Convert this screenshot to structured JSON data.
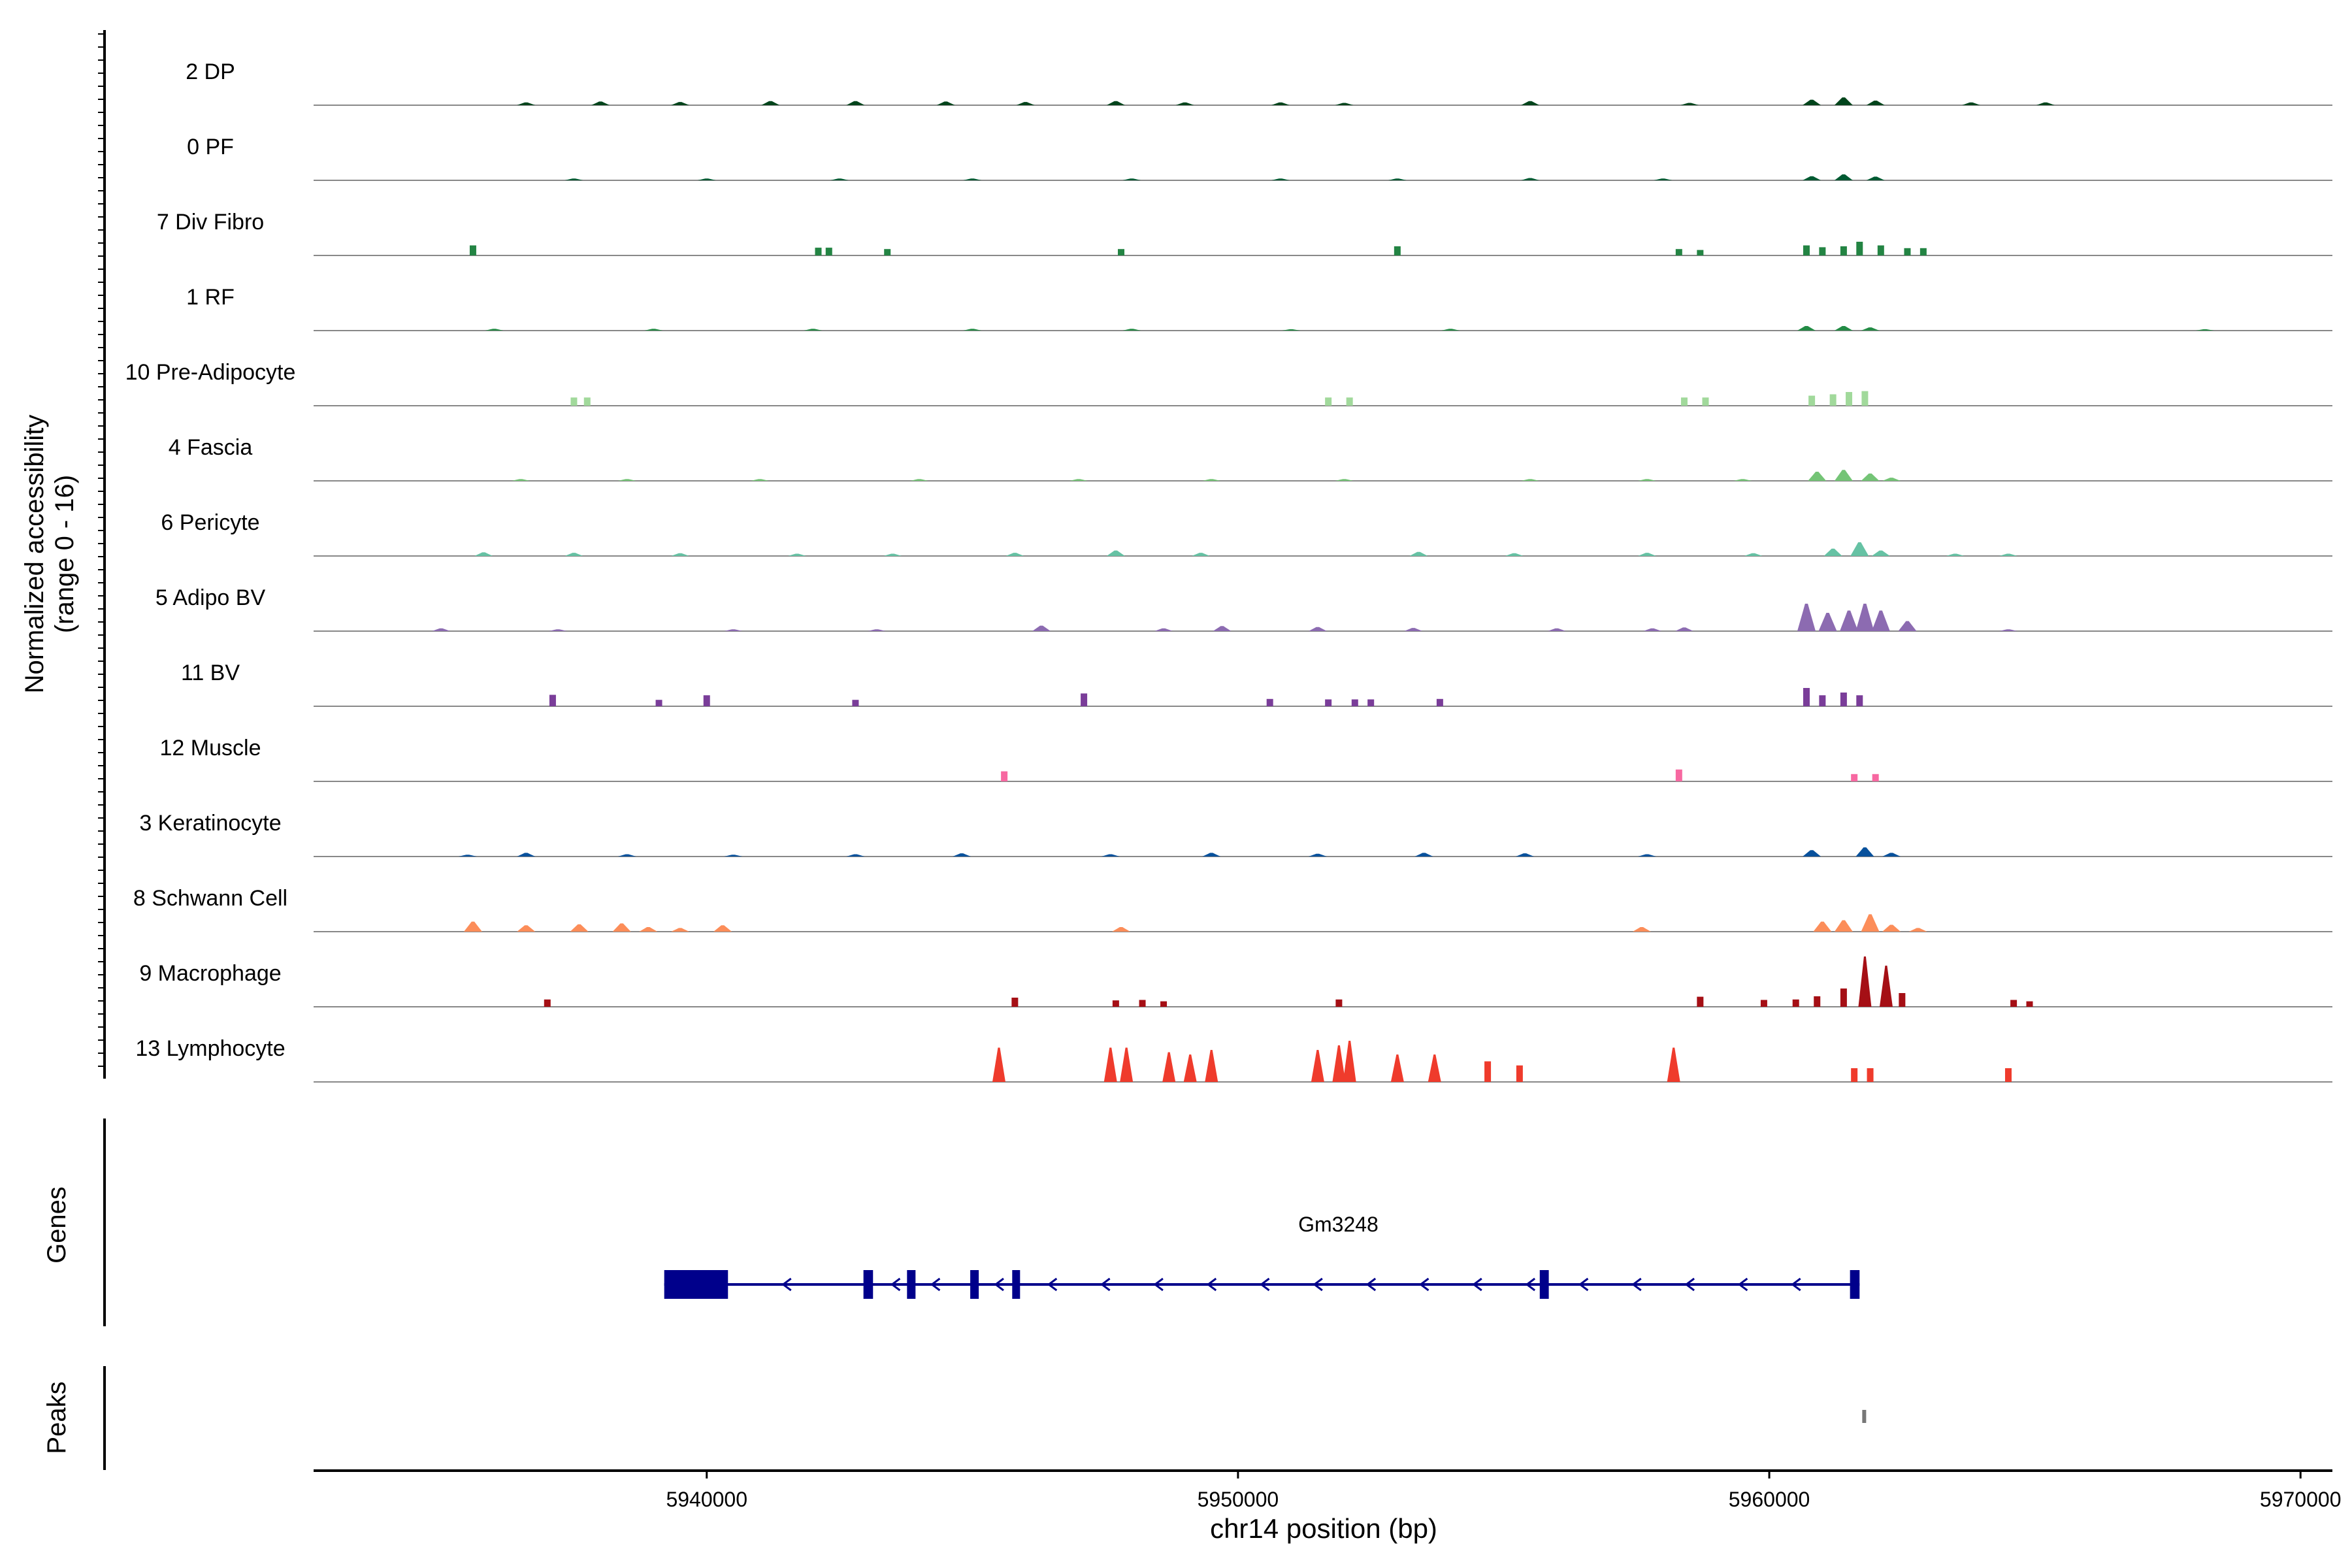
{
  "chart_data": {
    "type": "area",
    "ylabel_line1": "Normalized accessibility",
    "ylabel_line2": "(range 0 - 16)",
    "xlabel": "chr14 position (bp)",
    "genes_label": "Genes",
    "peaks_label": "Peaks",
    "gene_name": "Gm3248",
    "xlim": [
      5932600,
      5970600
    ],
    "x_ticks": [
      5940000,
      5950000,
      5960000,
      5970000
    ],
    "x_tick_labels": [
      "5940000",
      "5950000",
      "5960000",
      "5970000"
    ],
    "y_range": [
      0,
      16
    ],
    "tracks": [
      {
        "name": "2 DP",
        "color": "#00441b",
        "style": "dense",
        "peaks": [
          [
            5936600,
            0.6
          ],
          [
            5938000,
            0.8
          ],
          [
            5939500,
            0.7
          ],
          [
            5941200,
            0.9
          ],
          [
            5942800,
            0.9
          ],
          [
            5944500,
            0.8
          ],
          [
            5946000,
            0.7
          ],
          [
            5947700,
            0.9
          ],
          [
            5949000,
            0.6
          ],
          [
            5950800,
            0.6
          ],
          [
            5952000,
            0.5
          ],
          [
            5955500,
            0.9
          ],
          [
            5958500,
            0.5
          ],
          [
            5960800,
            1.2
          ],
          [
            5961400,
            1.7
          ],
          [
            5962000,
            1.0
          ],
          [
            5963800,
            0.6
          ],
          [
            5965200,
            0.6
          ]
        ]
      },
      {
        "name": "0 PF",
        "color": "#005a32",
        "style": "dense",
        "peaks": [
          [
            5937500,
            0.4
          ],
          [
            5940000,
            0.4
          ],
          [
            5942500,
            0.4
          ],
          [
            5945000,
            0.4
          ],
          [
            5948000,
            0.4
          ],
          [
            5950800,
            0.4
          ],
          [
            5953000,
            0.4
          ],
          [
            5955500,
            0.5
          ],
          [
            5958000,
            0.4
          ],
          [
            5960800,
            0.9
          ],
          [
            5961400,
            1.3
          ],
          [
            5962000,
            0.8
          ]
        ]
      },
      {
        "name": "7 Div Fibro",
        "color": "#238443",
        "style": "sparse",
        "peaks": [
          [
            5935600,
            2.2
          ],
          [
            5942100,
            1.7
          ],
          [
            5942300,
            1.7
          ],
          [
            5943400,
            1.4
          ],
          [
            5947800,
            1.4
          ],
          [
            5953000,
            2.0
          ],
          [
            5958300,
            1.4
          ],
          [
            5958700,
            1.2
          ],
          [
            5960700,
            2.2
          ],
          [
            5961000,
            1.8
          ],
          [
            5961400,
            2.0
          ],
          [
            5961700,
            3.0
          ],
          [
            5962100,
            2.2
          ],
          [
            5962600,
            1.6
          ],
          [
            5962900,
            1.6
          ]
        ]
      },
      {
        "name": "1 RF",
        "color": "#238b45",
        "style": "dense",
        "peaks": [
          [
            5936000,
            0.4
          ],
          [
            5939000,
            0.4
          ],
          [
            5942000,
            0.4
          ],
          [
            5945000,
            0.4
          ],
          [
            5948000,
            0.4
          ],
          [
            5951000,
            0.3
          ],
          [
            5954000,
            0.4
          ],
          [
            5960700,
            1.0
          ],
          [
            5961400,
            1.0
          ],
          [
            5961900,
            0.7
          ],
          [
            5968200,
            0.3
          ]
        ]
      },
      {
        "name": "10 Pre-Adipocyte",
        "color": "#a1d99b",
        "style": "sparse",
        "peaks": [
          [
            5937500,
            1.8
          ],
          [
            5937750,
            1.8
          ],
          [
            5951700,
            1.8
          ],
          [
            5952100,
            1.8
          ],
          [
            5958400,
            1.8
          ],
          [
            5958800,
            1.8
          ],
          [
            5960800,
            2.2
          ],
          [
            5961200,
            2.5
          ],
          [
            5961500,
            3.0
          ],
          [
            5961800,
            3.2
          ]
        ]
      },
      {
        "name": "4 Fascia",
        "color": "#74c476",
        "style": "dense",
        "peaks": [
          [
            5936500,
            0.4
          ],
          [
            5938500,
            0.4
          ],
          [
            5941000,
            0.4
          ],
          [
            5944000,
            0.4
          ],
          [
            5947000,
            0.4
          ],
          [
            5949500,
            0.4
          ],
          [
            5952000,
            0.4
          ],
          [
            5955500,
            0.4
          ],
          [
            5957700,
            0.4
          ],
          [
            5959500,
            0.4
          ],
          [
            5960900,
            2.0
          ],
          [
            5961400,
            2.4
          ],
          [
            5961900,
            1.6
          ],
          [
            5962300,
            0.7
          ]
        ]
      },
      {
        "name": "6 Pericyte",
        "color": "#66c2a4",
        "style": "dense",
        "peaks": [
          [
            5935800,
            0.8
          ],
          [
            5937500,
            0.7
          ],
          [
            5939500,
            0.6
          ],
          [
            5941700,
            0.5
          ],
          [
            5943500,
            0.5
          ],
          [
            5945800,
            0.7
          ],
          [
            5947700,
            1.2
          ],
          [
            5949300,
            0.7
          ],
          [
            5953400,
            0.9
          ],
          [
            5955200,
            0.6
          ],
          [
            5957700,
            0.7
          ],
          [
            5959700,
            0.6
          ],
          [
            5961200,
            1.6
          ],
          [
            5961700,
            3.0
          ],
          [
            5962100,
            1.2
          ],
          [
            5963500,
            0.5
          ],
          [
            5964500,
            0.5
          ]
        ]
      },
      {
        "name": "5 Adipo BV",
        "color": "#8c6bb1",
        "style": "dense",
        "peaks": [
          [
            5935000,
            0.6
          ],
          [
            5937200,
            0.4
          ],
          [
            5940500,
            0.4
          ],
          [
            5943200,
            0.4
          ],
          [
            5946300,
            1.2
          ],
          [
            5948600,
            0.6
          ],
          [
            5949700,
            1.1
          ],
          [
            5951500,
            0.9
          ],
          [
            5953300,
            0.7
          ],
          [
            5956000,
            0.6
          ],
          [
            5957800,
            0.6
          ],
          [
            5958400,
            0.8
          ],
          [
            5960700,
            6.0
          ],
          [
            5961100,
            4.0
          ],
          [
            5961500,
            4.5
          ],
          [
            5961800,
            6.0
          ],
          [
            5962100,
            4.5
          ],
          [
            5962600,
            2.2
          ],
          [
            5964500,
            0.4
          ]
        ]
      },
      {
        "name": "11 BV",
        "color": "#7a3d99",
        "style": "sparse",
        "peaks": [
          [
            5937100,
            2.5
          ],
          [
            5939100,
            1.4
          ],
          [
            5940000,
            2.4
          ],
          [
            5942800,
            1.4
          ],
          [
            5947100,
            2.8
          ],
          [
            5950600,
            1.6
          ],
          [
            5951700,
            1.5
          ],
          [
            5952200,
            1.5
          ],
          [
            5952500,
            1.5
          ],
          [
            5953800,
            1.6
          ],
          [
            5960700,
            4.0
          ],
          [
            5961000,
            2.4
          ],
          [
            5961400,
            3.0
          ],
          [
            5961700,
            2.4
          ]
        ]
      },
      {
        "name": "12 Muscle",
        "color": "#f768a1",
        "style": "sparse",
        "peaks": [
          [
            5945600,
            2.2
          ],
          [
            5958300,
            2.6
          ],
          [
            5961600,
            1.6
          ],
          [
            5962000,
            1.6
          ]
        ]
      },
      {
        "name": "3 Keratinocyte",
        "color": "#08519c",
        "style": "dense",
        "peaks": [
          [
            5935500,
            0.4
          ],
          [
            5936600,
            0.8
          ],
          [
            5938500,
            0.5
          ],
          [
            5940500,
            0.4
          ],
          [
            5942800,
            0.5
          ],
          [
            5944800,
            0.7
          ],
          [
            5947600,
            0.5
          ],
          [
            5949500,
            0.8
          ],
          [
            5951500,
            0.6
          ],
          [
            5953500,
            0.8
          ],
          [
            5955400,
            0.7
          ],
          [
            5957700,
            0.5
          ],
          [
            5960800,
            1.4
          ],
          [
            5961800,
            2.0
          ],
          [
            5962300,
            0.8
          ]
        ]
      },
      {
        "name": "8 Schwann Cell",
        "color": "#fc8d59",
        "style": "dense",
        "peaks": [
          [
            5935600,
            2.2
          ],
          [
            5936600,
            1.4
          ],
          [
            5937600,
            1.6
          ],
          [
            5938400,
            1.8
          ],
          [
            5938900,
            1.0
          ],
          [
            5939500,
            0.8
          ],
          [
            5940300,
            1.4
          ],
          [
            5947800,
            1.0
          ],
          [
            5957600,
            1.0
          ],
          [
            5961000,
            2.2
          ],
          [
            5961400,
            2.5
          ],
          [
            5961900,
            3.8
          ],
          [
            5962300,
            1.5
          ],
          [
            5962800,
            0.8
          ]
        ]
      },
      {
        "name": "9 Macrophage",
        "color": "#a50f15",
        "style": "sparse",
        "peaks": [
          [
            5937000,
            1.6
          ],
          [
            5945800,
            2.0
          ],
          [
            5947700,
            1.4
          ],
          [
            5948200,
            1.5
          ],
          [
            5948600,
            1.2
          ],
          [
            5951900,
            1.6
          ],
          [
            5958700,
            2.2
          ],
          [
            5959900,
            1.5
          ],
          [
            5960500,
            1.6
          ],
          [
            5960900,
            2.3
          ],
          [
            5961400,
            4.0
          ],
          [
            5961800,
            11.0
          ],
          [
            5962200,
            9.0
          ],
          [
            5962500,
            3.0
          ],
          [
            5964600,
            1.5
          ],
          [
            5964900,
            1.2
          ]
        ]
      },
      {
        "name": "13 Lymphocyte",
        "color": "#ef3b2c",
        "style": "sparse",
        "peaks": [
          [
            5945500,
            7.5
          ],
          [
            5947600,
            7.5
          ],
          [
            5947900,
            7.5
          ],
          [
            5948700,
            6.5
          ],
          [
            5949100,
            6.0
          ],
          [
            5949500,
            7.0
          ],
          [
            5951500,
            7.0
          ],
          [
            5951900,
            8.0
          ],
          [
            5952100,
            9.0
          ],
          [
            5953000,
            6.0
          ],
          [
            5953700,
            6.0
          ],
          [
            5954700,
            4.5
          ],
          [
            5955300,
            3.6
          ],
          [
            5958200,
            7.5
          ],
          [
            5961600,
            3.0
          ],
          [
            5961900,
            3.0
          ],
          [
            5964500,
            3.0
          ]
        ]
      }
    ],
    "gene": {
      "start": 5939200,
      "end": 5961700,
      "exons": [
        [
          5939200,
          5940400
        ],
        [
          5942950,
          5943130
        ],
        [
          5943770,
          5943930
        ],
        [
          5944960,
          5945120
        ],
        [
          5945750,
          5945880
        ],
        [
          5955680,
          5955850
        ],
        [
          5961520,
          5961700
        ]
      ],
      "arrows": [
        5941500,
        5943550,
        5944300,
        5945500,
        5946500,
        5947500,
        5948500,
        5949500,
        5950500,
        5951500,
        5952500,
        5953500,
        5954500,
        5955500,
        5956500,
        5957500,
        5958500,
        5959500,
        5960500
      ],
      "strand": "-"
    },
    "peak_regions": [
      [
        5961750,
        5961820
      ]
    ],
    "colors": {
      "gene": "#00008b",
      "peak": "#777777",
      "baseline": "#888888",
      "axis": "#000000"
    }
  }
}
